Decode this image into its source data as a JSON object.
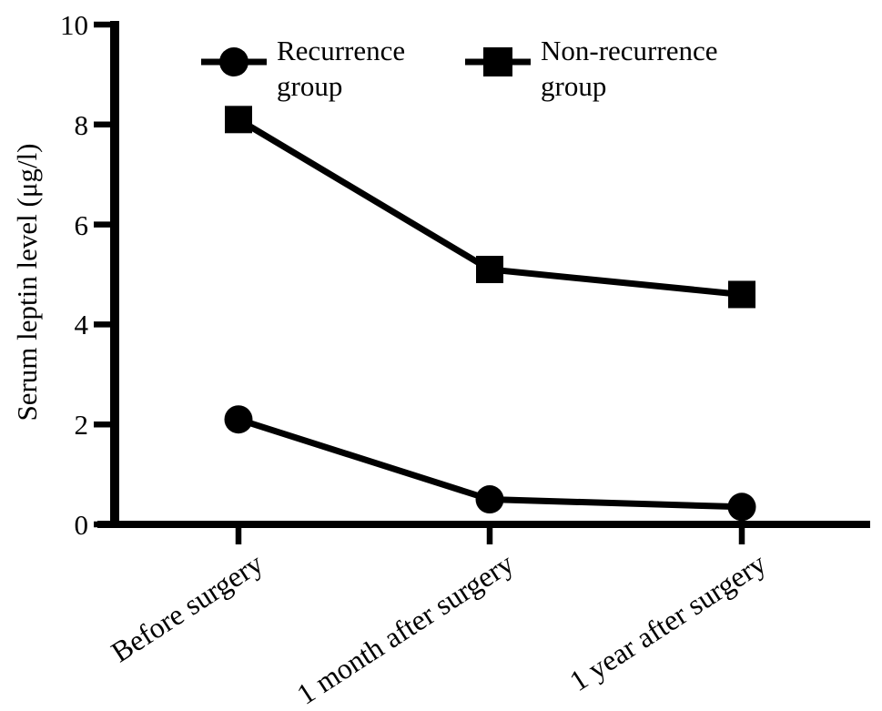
{
  "figure": {
    "background": "#ffffff",
    "ink_color": "#000000"
  },
  "chart_data": {
    "type": "line",
    "categories": [
      "Before surgery",
      "1 month after surgery",
      "1 year after surgery"
    ],
    "series": [
      {
        "name": "Recurrence group",
        "marker": "circle",
        "values": [
          2.1,
          0.5,
          0.35
        ]
      },
      {
        "name": "Non-recurrence group",
        "marker": "square",
        "values": [
          8.1,
          5.1,
          4.6
        ]
      }
    ],
    "title": "",
    "xlabel": "",
    "ylabel": "Serum leptin level (μg/l)",
    "ylim": [
      0,
      10
    ],
    "yticks": [
      0,
      2,
      4,
      6,
      8,
      10
    ],
    "grid": false,
    "legend_position": "top",
    "line_color": "#000000",
    "marker_color": "#000000"
  }
}
